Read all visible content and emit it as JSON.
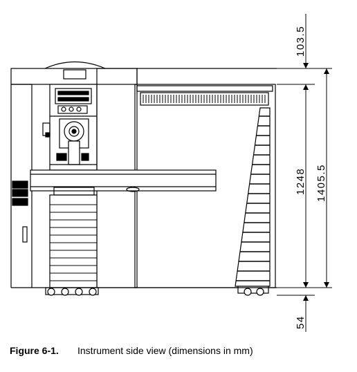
{
  "caption": {
    "label": "Figure 6-1.",
    "text": "Instrument side view (dimensions in mm)"
  },
  "dimensions": {
    "top_clearance": "103.5",
    "body_height": "1248",
    "total_height": "1405.5",
    "bottom_clearance": "54"
  }
}
